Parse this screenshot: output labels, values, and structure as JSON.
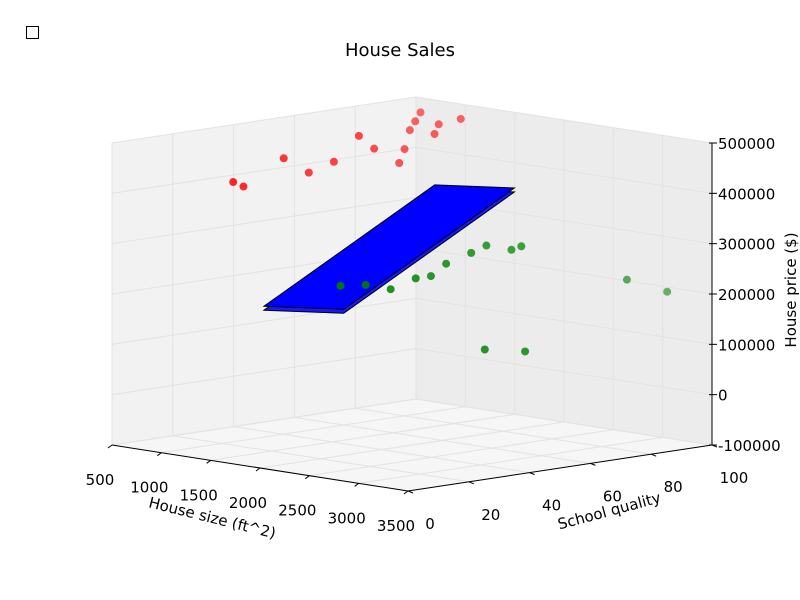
{
  "chart_data": {
    "type": "scatter",
    "projection": "3d",
    "title": "House Sales",
    "xlabel": "House size (ft^2)",
    "ylabel": "School quality",
    "zlabel": "House price ($)",
    "xticks": [
      "500",
      "1000",
      "1500",
      "2000",
      "2500",
      "3000",
      "3500"
    ],
    "yticks": [
      "0",
      "20",
      "40",
      "60",
      "80",
      "100"
    ],
    "zticks": [
      "-100000",
      "0",
      "100000",
      "200000",
      "300000",
      "400000",
      "500000"
    ],
    "xlim": [
      500,
      3500
    ],
    "ylim": [
      0,
      100
    ],
    "zlim": [
      -100000,
      500000
    ],
    "grid": true,
    "colors": {
      "high_price": "#ff0000",
      "low_price": "#008000",
      "plane_face": "#0000ff",
      "plane_edge": "#000000"
    },
    "series": [
      {
        "color": "#ff0000",
        "points": [
          [
            700,
            95,
            480000
          ],
          [
            800,
            90,
            470000
          ],
          [
            900,
            85,
            460000
          ],
          [
            1000,
            80,
            430000
          ],
          [
            1100,
            88,
            475000
          ],
          [
            1200,
            92,
            485000
          ],
          [
            1000,
            70,
            440000
          ],
          [
            900,
            60,
            420000
          ],
          [
            800,
            55,
            400000
          ],
          [
            700,
            50,
            430000
          ],
          [
            600,
            40,
            380000
          ],
          [
            650,
            35,
            395000
          ],
          [
            1100,
            75,
            410000
          ],
          [
            1000,
            65,
            470000
          ],
          [
            1150,
            85,
            460000
          ]
        ]
      },
      {
        "color": "#008000",
        "points": [
          [
            2200,
            20,
            250000
          ],
          [
            2400,
            30,
            240000
          ],
          [
            2500,
            35,
            260000
          ],
          [
            2500,
            40,
            260000
          ],
          [
            2500,
            45,
            280000
          ],
          [
            2600,
            50,
            300000
          ],
          [
            2600,
            55,
            310000
          ],
          [
            2800,
            60,
            310000
          ],
          [
            3200,
            35,
            140000
          ],
          [
            3300,
            45,
            130000
          ],
          [
            3100,
            85,
            230000
          ],
          [
            3200,
            95,
            200000
          ],
          [
            2300,
            25,
            250000
          ],
          [
            2700,
            60,
            300000
          ]
        ]
      }
    ],
    "plane": {
      "description_only": false,
      "corners": [
        [
          500,
          50,
          130000
        ],
        [
          1000,
          60,
          130000
        ],
        [
          3500,
          35,
          470000
        ],
        [
          3000,
          25,
          470000
        ]
      ]
    }
  },
  "toggle": {
    "checked": false
  }
}
